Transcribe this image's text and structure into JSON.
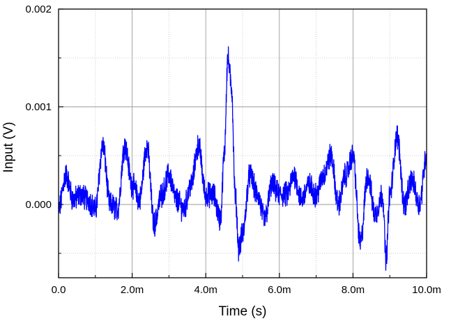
{
  "chart_data": {
    "type": "line",
    "title": "",
    "xlabel": "Time (s)",
    "ylabel": "Input (V)",
    "xlim": [
      0,
      0.01
    ],
    "ylim": [
      -0.00075,
      0.002
    ],
    "grid": true,
    "x_ticks": [
      {
        "value": 0.0,
        "label": "0.0"
      },
      {
        "value": 0.002,
        "label": "2.0m"
      },
      {
        "value": 0.004,
        "label": "4.0m"
      },
      {
        "value": 0.006,
        "label": "6.0m"
      },
      {
        "value": 0.008,
        "label": "8.0m"
      },
      {
        "value": 0.01,
        "label": "10.0m"
      }
    ],
    "y_ticks": [
      {
        "value": 0.0,
        "label": "0.000"
      },
      {
        "value": 0.001,
        "label": "0.001"
      },
      {
        "value": 0.002,
        "label": "0.002"
      }
    ],
    "colors": {
      "line": "#0000ff",
      "grid": "#bdbdbd",
      "axis": "#000000"
    },
    "series": [
      {
        "x": [
          0,
          0.0002,
          0.0004,
          0.0006,
          0.0008,
          0.001,
          0.0012,
          0.0014,
          0.0016,
          0.0018,
          0.002,
          0.0022,
          0.0024,
          0.0026,
          0.0028,
          0.003,
          0.0032,
          0.0034,
          0.0036,
          0.0038,
          0.004,
          0.0042,
          0.0044,
          0.0045,
          0.0046,
          0.0047,
          0.0048,
          0.0049,
          0.005,
          0.0052,
          0.0054,
          0.0056,
          0.0058,
          0.006,
          0.0062,
          0.0064,
          0.0066,
          0.0068,
          0.007,
          0.0072,
          0.0074,
          0.0076,
          0.0078,
          0.008,
          0.0082,
          0.0084,
          0.0086,
          0.0088,
          0.0089,
          0.009,
          0.0092,
          0.0094,
          0.0096,
          0.0098,
          0.01
        ],
        "values": [
          -5e-05,
          0.0003,
          5e-05,
          0.0001,
          5e-05,
          -5e-05,
          0.0006,
          0.0,
          -5e-05,
          0.0006,
          0.0002,
          5e-05,
          0.0006,
          -0.0002,
          0.0001,
          0.0003,
          5e-05,
          -5e-05,
          0.0002,
          0.0006,
          0.0001,
          0.0001,
          -0.00015,
          0.0005,
          0.0015,
          0.0012,
          0.0001,
          -0.00045,
          -0.0003,
          0.0003,
          0.0001,
          -0.00015,
          0.0002,
          0.0001,
          0.0001,
          0.0003,
          5e-05,
          0.0002,
          0.0001,
          0.0003,
          0.0005,
          0.0,
          0.0003,
          0.0005,
          -0.0004,
          0.0003,
          -0.0001,
          0.0001,
          -0.00055,
          0.0001,
          0.0007,
          0.0,
          0.00025,
          0.0,
          0.0005
        ]
      }
    ]
  }
}
